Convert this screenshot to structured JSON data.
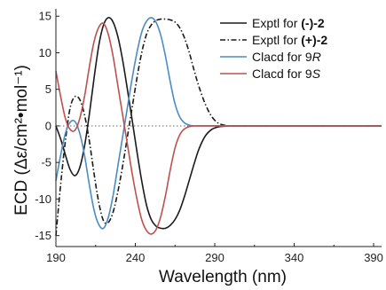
{
  "chart_data": {
    "type": "line",
    "xlabel": "Wavelength (nm)",
    "ylabel": "ECD (Δε/cm²•mol⁻¹)",
    "xlim": [
      190,
      395
    ],
    "ylim": [
      -16.5,
      16
    ],
    "x_ticks": [
      190,
      240,
      290,
      340,
      390
    ],
    "y_ticks": [
      15,
      10,
      5,
      0,
      -5,
      -10,
      -15
    ],
    "zero_line": "dotted",
    "legend_position": "top-right",
    "series": [
      {
        "name": "Exptl for (-)-2",
        "legend_prefix": "Exptl for ",
        "legend_bold": "(-)-2",
        "legend_italic": "",
        "color": "#1a1a1a",
        "dash": "solid",
        "x": [
          190,
          193,
          196,
          199,
          202,
          205,
          208,
          211,
          214,
          217,
          220,
          223,
          226,
          229,
          232,
          235,
          238,
          241,
          244,
          247,
          250,
          253,
          256,
          259,
          262,
          265,
          268,
          271,
          274,
          277,
          280,
          284,
          288,
          292,
          296,
          300,
          310,
          330,
          395
        ],
        "y": [
          0,
          -1.8,
          -4,
          -6,
          -6.8,
          -5.7,
          -2.8,
          1.5,
          6.5,
          11,
          13.8,
          14.8,
          14.2,
          12.2,
          9,
          5,
          0.8,
          -3.5,
          -7.5,
          -10.8,
          -12.8,
          -13.7,
          -14,
          -14,
          -13.6,
          -12.8,
          -11.5,
          -9.6,
          -7.4,
          -5.2,
          -3.2,
          -1.4,
          -0.5,
          -0.15,
          -0.05,
          0,
          0,
          0,
          0
        ]
      },
      {
        "name": "Exptl for (+)-2",
        "legend_prefix": "Exptl for ",
        "legend_bold": "(+)-2",
        "legend_italic": "",
        "color": "#1a1a1a",
        "dash": "dashdot",
        "x": [
          190,
          193,
          196,
          199,
          202,
          205,
          208,
          211,
          214,
          217,
          220,
          223,
          226,
          229,
          232,
          235,
          238,
          241,
          244,
          247,
          250,
          253,
          256,
          259,
          262,
          265,
          268,
          271,
          274,
          277,
          280,
          284,
          288,
          292,
          296,
          300,
          310,
          330,
          395
        ],
        "y": [
          -15,
          -8,
          -2,
          2.5,
          4,
          3.6,
          1.5,
          -2,
          -6.5,
          -10.5,
          -13,
          -13.2,
          -11.8,
          -9,
          -5.5,
          -1.5,
          2.5,
          6.5,
          10,
          12.5,
          13.8,
          14.4,
          14.6,
          14.6,
          14.5,
          14.2,
          13.4,
          12,
          10,
          7.6,
          5.4,
          3,
          1.3,
          0.4,
          0.1,
          0,
          0,
          0,
          0
        ]
      },
      {
        "name": "Clacd for 9R",
        "legend_prefix": "Clacd for 9",
        "legend_bold": "",
        "legend_italic": "R",
        "color": "#4a8cc4",
        "dash": "solid",
        "x": [
          190,
          193,
          196,
          199,
          202,
          205,
          208,
          211,
          214,
          217,
          220,
          223,
          226,
          229,
          232,
          235,
          238,
          241,
          244,
          247,
          250,
          253,
          256,
          259,
          262,
          265,
          268,
          271,
          274,
          277,
          280,
          284,
          288,
          292,
          296,
          300,
          310,
          330,
          395
        ],
        "y": [
          -7.5,
          -4,
          -1,
          0.5,
          0.6,
          -1,
          -4,
          -8,
          -11.5,
          -13.5,
          -14,
          -12.5,
          -9.5,
          -5.5,
          -1.5,
          2.5,
          6.5,
          10,
          12.8,
          14.3,
          14.8,
          14.2,
          12.4,
          9.5,
          6,
          3,
          1.2,
          0.4,
          0.1,
          0,
          0,
          0,
          0,
          0,
          0,
          0,
          0,
          0,
          0
        ]
      },
      {
        "name": "Clacd for 9S",
        "legend_prefix": "Clacd for 9",
        "legend_bold": "",
        "legend_italic": "S",
        "color": "#c0504d",
        "dash": "solid",
        "x": [
          190,
          193,
          196,
          199,
          202,
          205,
          208,
          211,
          214,
          217,
          220,
          223,
          226,
          229,
          232,
          235,
          238,
          241,
          244,
          247,
          250,
          253,
          256,
          259,
          262,
          265,
          268,
          271,
          274,
          277,
          280,
          284,
          288,
          292,
          296,
          300,
          310,
          330,
          395
        ],
        "y": [
          7.5,
          4,
          1,
          -0.5,
          -0.6,
          1,
          4,
          8,
          11.5,
          13.5,
          14,
          12.5,
          9.5,
          5.5,
          1.5,
          -2.5,
          -6.5,
          -10,
          -12.8,
          -14.3,
          -14.8,
          -14.2,
          -12.4,
          -9.5,
          -6,
          -3,
          -1.2,
          -0.4,
          -0.1,
          0,
          0,
          0,
          0,
          0,
          0,
          0,
          0,
          0,
          0
        ]
      }
    ]
  }
}
